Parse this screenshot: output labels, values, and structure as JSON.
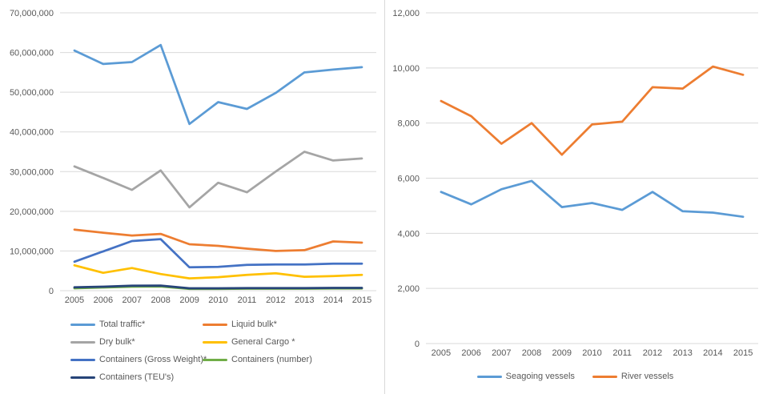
{
  "style": {
    "background": "#ffffff",
    "gridline_color": "#d9d9d9",
    "axis_text_color": "#595959",
    "divider_color": "#d9d9d9"
  },
  "chart_data": [
    {
      "id": "cargo",
      "type": "line",
      "title": "",
      "xlabel": "",
      "ylabel": "",
      "grid": "horizontal",
      "legend_position": "bottom",
      "legend_columns": 2,
      "categories": [
        "2005",
        "2006",
        "2007",
        "2008",
        "2009",
        "2010",
        "2011",
        "2012",
        "2013",
        "2014",
        "2015"
      ],
      "ylim": [
        0,
        70000000
      ],
      "yticks": {
        "values": [
          0,
          10000000,
          20000000,
          30000000,
          40000000,
          50000000,
          60000000,
          70000000
        ],
        "labels": [
          "0",
          "10,000,000",
          "20,000,000",
          "30,000,000",
          "40,000,000",
          "50,000,000",
          "60,000,000",
          "70,000,000"
        ]
      },
      "series": [
        {
          "name": "Total traffic*",
          "color": "#5B9BD5",
          "values": [
            60500000,
            57100000,
            57600000,
            61900000,
            42000000,
            47500000,
            45800000,
            49800000,
            55000000,
            55700000,
            56300000
          ]
        },
        {
          "name": "Liquid bulk*",
          "color": "#ED7D31",
          "values": [
            15400000,
            14600000,
            13900000,
            14300000,
            11700000,
            11300000,
            10600000,
            10000000,
            10200000,
            12400000,
            12100000
          ]
        },
        {
          "name": "Dry bulk*",
          "color": "#A5A5A5",
          "values": [
            31300000,
            28400000,
            25400000,
            30300000,
            21000000,
            27200000,
            24800000,
            30000000,
            35000000,
            32800000,
            33300000
          ]
        },
        {
          "name": "General Cargo *",
          "color": "#FFC000",
          "values": [
            6400000,
            4500000,
            5700000,
            4200000,
            3100000,
            3400000,
            4000000,
            4400000,
            3500000,
            3700000,
            4000000
          ]
        },
        {
          "name": "Containers (Gross Weight)*",
          "color": "#4472C4",
          "values": [
            7300000,
            9900000,
            12500000,
            13000000,
            5900000,
            6000000,
            6500000,
            6600000,
            6600000,
            6800000,
            6800000
          ]
        },
        {
          "name": "Containers (number)",
          "color": "#70AD47",
          "values": [
            600000,
            800000,
            1000000,
            1050000,
            450000,
            450000,
            500000,
            500000,
            500000,
            550000,
            550000
          ]
        },
        {
          "name": "Containers (TEU's)",
          "color": "#264478",
          "values": [
            850000,
            1000000,
            1250000,
            1300000,
            600000,
            600000,
            650000,
            650000,
            650000,
            700000,
            700000
          ]
        }
      ]
    },
    {
      "id": "vessels",
      "type": "line",
      "title": "",
      "xlabel": "",
      "ylabel": "",
      "grid": "horizontal",
      "legend_position": "bottom",
      "legend_columns": 2,
      "categories": [
        "2005",
        "2006",
        "2007",
        "2008",
        "2009",
        "2010",
        "2011",
        "2012",
        "2013",
        "2014",
        "2015"
      ],
      "ylim": [
        0,
        12000
      ],
      "yticks": {
        "values": [
          0,
          2000,
          4000,
          6000,
          8000,
          10000,
          12000
        ],
        "labels": [
          "0",
          "2,000",
          "4,000",
          "6,000",
          "8,000",
          "10,000",
          "12,000"
        ]
      },
      "series": [
        {
          "name": "Seagoing vessels",
          "color": "#5B9BD5",
          "values": [
            5500,
            5050,
            5600,
            5900,
            4950,
            5100,
            4850,
            5500,
            4800,
            4750,
            4600
          ]
        },
        {
          "name": "River vessels",
          "color": "#ED7D31",
          "values": [
            8800,
            8250,
            7250,
            8000,
            6850,
            7950,
            8050,
            9300,
            9250,
            10050,
            9750
          ]
        }
      ]
    }
  ]
}
